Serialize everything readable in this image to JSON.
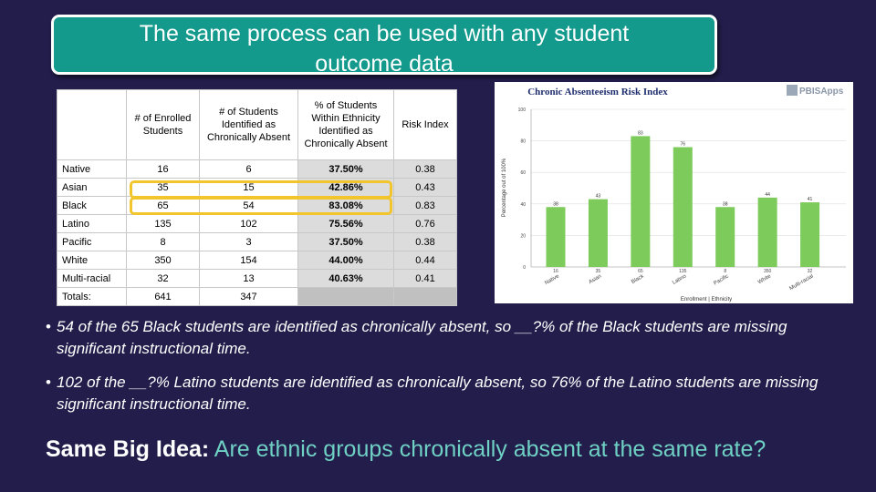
{
  "slide": {
    "title_line1": "The same process can be used with any student",
    "title_line2": "outcome data"
  },
  "table": {
    "headers": [
      "",
      "# of Enrolled Students",
      "# of Students Identified as Chronically Absent",
      "% of Students Within Ethnicity Identified as Chronically Absent",
      "Risk Index"
    ],
    "rows": [
      {
        "ethnicity": "Native",
        "enrolled": "16",
        "absent": "6",
        "pct": "37.50%",
        "risk": "0.38"
      },
      {
        "ethnicity": "Asian",
        "enrolled": "35",
        "absent": "15",
        "pct": "42.86%",
        "risk": "0.43"
      },
      {
        "ethnicity": "Black",
        "enrolled": "65",
        "absent": "54",
        "pct": "83.08%",
        "risk": "0.83"
      },
      {
        "ethnicity": "Latino",
        "enrolled": "135",
        "absent": "102",
        "pct": "75.56%",
        "risk": "0.76"
      },
      {
        "ethnicity": "Pacific",
        "enrolled": "8",
        "absent": "3",
        "pct": "37.50%",
        "risk": "0.38"
      },
      {
        "ethnicity": "White",
        "enrolled": "350",
        "absent": "154",
        "pct": "44.00%",
        "risk": "0.44"
      },
      {
        "ethnicity": "Multi-racial",
        "enrolled": "32",
        "absent": "13",
        "pct": "40.63%",
        "risk": "0.41"
      }
    ],
    "totals": {
      "label": "Totals:",
      "enrolled": "641",
      "absent": "347"
    },
    "highlight_color": "#f2c52d"
  },
  "chart_data": {
    "type": "bar",
    "title": "Chronic Absenteeism Risk Index",
    "logo_text": "PBISApps",
    "ylabel": "Percentage out of 100%",
    "xlabel": "Enrollment | Ethnicity",
    "ylim": [
      0,
      100
    ],
    "yticks": [
      0,
      20,
      40,
      60,
      80,
      100
    ],
    "categories": [
      "Native",
      "Asian",
      "Black",
      "Latino",
      "Pacific",
      "White",
      "Multi-racial"
    ],
    "enrollment": [
      "16",
      "35",
      "65",
      "135",
      "8",
      "350",
      "32"
    ],
    "values": [
      38,
      43,
      83,
      76,
      38,
      44,
      41
    ],
    "value_labels": [
      "38",
      "43",
      "83",
      "76",
      "38",
      "44",
      "41"
    ],
    "bar_color": "#7dcb5a"
  },
  "bullets": [
    {
      "prefix": "54 of the 65 Black students are identified as chronically absent, so ",
      "blank": "__?%",
      "suffix": " of the Black students are missing significant instructional time."
    },
    {
      "prefix": "102 of the ",
      "blank": "__?%",
      "suffix": "  Latino students are identified as chronically absent, so 76% of the Latino students are missing significant instructional time."
    }
  ],
  "big_idea": {
    "label": "Same Big Idea:",
    "text": " Are ethnic groups chronically absent at the same rate?"
  }
}
